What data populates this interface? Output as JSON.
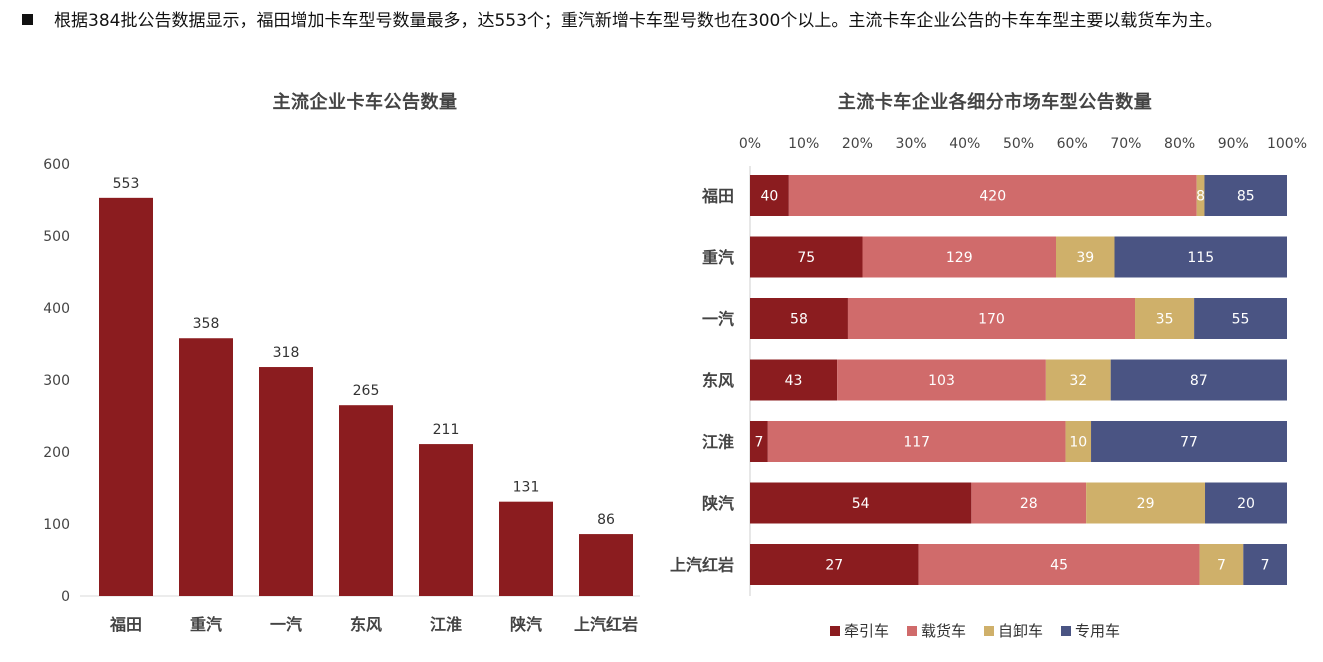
{
  "bullet": {
    "text": "根据384批公告数据显示，福田增加卡车型号数量最多，达553个；重汽新增卡车型号数也在300个以上。主流卡车企业公告的卡车车型主要以载货车为主。"
  },
  "colors": {
    "tractor": "#8b1c1f",
    "cargo": "#d06b6b",
    "dump": "#cfb06a",
    "special": "#4a5483",
    "bar": "#8b1c1f"
  },
  "chart_data": [
    {
      "type": "bar",
      "title": "主流企业卡车公告数量",
      "categories": [
        "福田",
        "重汽",
        "一汽",
        "东风",
        "江淮",
        "陕汽",
        "上汽红岩"
      ],
      "values": [
        553,
        358,
        318,
        265,
        211,
        131,
        86
      ],
      "ylim": [
        0,
        600
      ],
      "yticks": [
        0,
        100,
        200,
        300,
        400,
        500,
        600
      ],
      "grid": false,
      "data_labels": true
    },
    {
      "type": "bar",
      "orientation": "horizontal",
      "stacked": "percent",
      "title": "主流卡车企业各细分市场车型公告数量",
      "categories": [
        "福田",
        "重汽",
        "一汽",
        "东风",
        "江淮",
        "陕汽",
        "上汽红岩"
      ],
      "xticks": [
        "0%",
        "10%",
        "20%",
        "30%",
        "40%",
        "50%",
        "60%",
        "70%",
        "80%",
        "90%",
        "100%"
      ],
      "legend_position": "bottom",
      "series": [
        {
          "name": "牵引车",
          "values": [
            40,
            75,
            58,
            43,
            7,
            54,
            27
          ]
        },
        {
          "name": "载货车",
          "values": [
            420,
            129,
            170,
            103,
            117,
            28,
            45
          ]
        },
        {
          "name": "自卸车",
          "values": [
            8,
            39,
            35,
            32,
            10,
            29,
            7
          ]
        },
        {
          "name": "专用车",
          "values": [
            85,
            115,
            55,
            87,
            77,
            20,
            7
          ]
        }
      ]
    }
  ]
}
